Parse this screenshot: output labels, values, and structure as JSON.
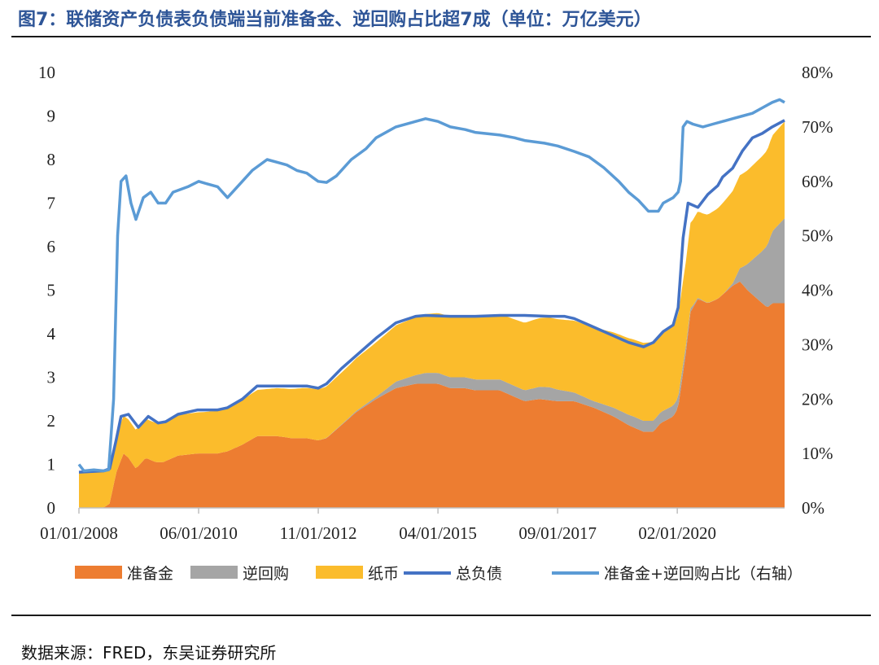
{
  "title": "图7：联储资产负债表负债端当前准备金、逆回购占比超7成（单位：万亿美元）",
  "source": "数据来源：FRED，东吴证券研究所",
  "chart_data": {
    "type": "area",
    "x_tick_labels": [
      "01/01/2008",
      "06/01/2010",
      "11/01/2012",
      "04/01/2015",
      "09/01/2017",
      "02/01/2020"
    ],
    "x_tick_positions": [
      2008.0,
      2010.417,
      2012.833,
      2015.25,
      2017.667,
      2020.083
    ],
    "x_range": [
      2008.0,
      2022.25
    ],
    "ylim_left": [
      0,
      10
    ],
    "yticks_left": [
      "0",
      "1",
      "2",
      "3",
      "4",
      "5",
      "6",
      "7",
      "8",
      "9",
      "10"
    ],
    "ylim_right": [
      0,
      80
    ],
    "yticks_right": [
      "0%",
      "10%",
      "20%",
      "30%",
      "40%",
      "50%",
      "60%",
      "70%",
      "80%"
    ],
    "legend_position": "bottom",
    "series": [
      {
        "name": "准备金",
        "kind": "stacked-area",
        "axis": "left",
        "color": "#ed7d31",
        "points": [
          [
            2008.0,
            0.01
          ],
          [
            2008.5,
            0.01
          ],
          [
            2008.62,
            0.1
          ],
          [
            2008.75,
            0.8
          ],
          [
            2008.9,
            1.25
          ],
          [
            2009.0,
            1.15
          ],
          [
            2009.15,
            0.9
          ],
          [
            2009.35,
            1.15
          ],
          [
            2009.55,
            1.05
          ],
          [
            2009.7,
            1.05
          ],
          [
            2010.0,
            1.2
          ],
          [
            2010.4,
            1.25
          ],
          [
            2010.8,
            1.25
          ],
          [
            2011.0,
            1.3
          ],
          [
            2011.3,
            1.45
          ],
          [
            2011.6,
            1.65
          ],
          [
            2012.0,
            1.65
          ],
          [
            2012.3,
            1.6
          ],
          [
            2012.6,
            1.6
          ],
          [
            2012.83,
            1.55
          ],
          [
            2013.0,
            1.6
          ],
          [
            2013.3,
            1.9
          ],
          [
            2013.6,
            2.2
          ],
          [
            2014.0,
            2.5
          ],
          [
            2014.4,
            2.75
          ],
          [
            2014.8,
            2.85
          ],
          [
            2015.0,
            2.85
          ],
          [
            2015.25,
            2.85
          ],
          [
            2015.5,
            2.75
          ],
          [
            2015.8,
            2.75
          ],
          [
            2016.0,
            2.7
          ],
          [
            2016.5,
            2.7
          ],
          [
            2016.8,
            2.55
          ],
          [
            2017.0,
            2.45
          ],
          [
            2017.3,
            2.5
          ],
          [
            2017.667,
            2.45
          ],
          [
            2018.0,
            2.45
          ],
          [
            2018.4,
            2.3
          ],
          [
            2018.8,
            2.1
          ],
          [
            2019.1,
            1.9
          ],
          [
            2019.4,
            1.75
          ],
          [
            2019.6,
            1.75
          ],
          [
            2019.75,
            1.95
          ],
          [
            2020.0,
            2.1
          ],
          [
            2020.1,
            2.3
          ],
          [
            2020.25,
            3.5
          ],
          [
            2020.35,
            4.5
          ],
          [
            2020.5,
            4.8
          ],
          [
            2020.7,
            4.7
          ],
          [
            2020.9,
            4.8
          ],
          [
            2021.0,
            4.9
          ],
          [
            2021.2,
            5.1
          ],
          [
            2021.35,
            5.2
          ],
          [
            2021.5,
            5.0
          ],
          [
            2021.7,
            4.8
          ],
          [
            2021.9,
            4.6
          ],
          [
            2022.0,
            4.7
          ],
          [
            2022.25,
            4.7
          ]
        ]
      },
      {
        "name": "逆回购",
        "kind": "stacked-area",
        "axis": "left",
        "color": "#a5a5a5",
        "points": [
          [
            2008.0,
            0.0
          ],
          [
            2012.8,
            0.0
          ],
          [
            2013.5,
            0.02
          ],
          [
            2014.0,
            0.05
          ],
          [
            2014.4,
            0.15
          ],
          [
            2014.8,
            0.2
          ],
          [
            2015.0,
            0.25
          ],
          [
            2015.5,
            0.25
          ],
          [
            2016.0,
            0.25
          ],
          [
            2016.5,
            0.25
          ],
          [
            2017.0,
            0.25
          ],
          [
            2017.5,
            0.3
          ],
          [
            2018.0,
            0.2
          ],
          [
            2018.4,
            0.15
          ],
          [
            2018.8,
            0.2
          ],
          [
            2019.2,
            0.25
          ],
          [
            2019.6,
            0.25
          ],
          [
            2020.0,
            0.25
          ],
          [
            2020.2,
            0.2
          ],
          [
            2020.4,
            0.05
          ],
          [
            2020.6,
            0.01
          ],
          [
            2021.0,
            0.0
          ],
          [
            2021.2,
            0.05
          ],
          [
            2021.4,
            0.4
          ],
          [
            2021.6,
            0.8
          ],
          [
            2021.8,
            1.2
          ],
          [
            2022.0,
            1.65
          ],
          [
            2022.25,
            1.95
          ]
        ]
      },
      {
        "name": "纸币",
        "kind": "stacked-area",
        "axis": "left",
        "color": "#fbbc2c",
        "points": [
          [
            2008.0,
            0.8
          ],
          [
            2008.5,
            0.82
          ],
          [
            2008.75,
            0.85
          ],
          [
            2009.0,
            0.88
          ],
          [
            2009.5,
            0.9
          ],
          [
            2010.0,
            0.93
          ],
          [
            2010.5,
            0.95
          ],
          [
            2011.0,
            1.0
          ],
          [
            2011.5,
            1.05
          ],
          [
            2012.0,
            1.1
          ],
          [
            2012.5,
            1.15
          ],
          [
            2013.0,
            1.18
          ],
          [
            2013.5,
            1.2
          ],
          [
            2014.0,
            1.25
          ],
          [
            2014.5,
            1.3
          ],
          [
            2015.0,
            1.35
          ],
          [
            2015.5,
            1.4
          ],
          [
            2016.0,
            1.45
          ],
          [
            2016.5,
            1.5
          ],
          [
            2017.0,
            1.55
          ],
          [
            2017.5,
            1.6
          ],
          [
            2018.0,
            1.65
          ],
          [
            2018.5,
            1.7
          ],
          [
            2019.0,
            1.75
          ],
          [
            2019.5,
            1.8
          ],
          [
            2020.0,
            1.85
          ],
          [
            2020.3,
            1.95
          ],
          [
            2020.6,
            2.0
          ],
          [
            2021.0,
            2.1
          ],
          [
            2021.5,
            2.15
          ],
          [
            2022.0,
            2.2
          ],
          [
            2022.25,
            2.22
          ]
        ]
      },
      {
        "name": "总负债",
        "kind": "line",
        "axis": "left",
        "color": "#4472c4",
        "points": [
          [
            2008.0,
            0.82
          ],
          [
            2008.5,
            0.85
          ],
          [
            2008.62,
            0.9
          ],
          [
            2008.75,
            1.55
          ],
          [
            2008.85,
            2.1
          ],
          [
            2009.0,
            2.15
          ],
          [
            2009.2,
            1.85
          ],
          [
            2009.4,
            2.1
          ],
          [
            2009.6,
            1.95
          ],
          [
            2009.75,
            1.98
          ],
          [
            2010.0,
            2.15
          ],
          [
            2010.4,
            2.25
          ],
          [
            2010.8,
            2.25
          ],
          [
            2011.0,
            2.3
          ],
          [
            2011.3,
            2.5
          ],
          [
            2011.6,
            2.8
          ],
          [
            2012.0,
            2.8
          ],
          [
            2012.3,
            2.8
          ],
          [
            2012.6,
            2.8
          ],
          [
            2012.83,
            2.75
          ],
          [
            2013.0,
            2.85
          ],
          [
            2013.3,
            3.2
          ],
          [
            2013.6,
            3.5
          ],
          [
            2014.0,
            3.9
          ],
          [
            2014.4,
            4.25
          ],
          [
            2014.8,
            4.4
          ],
          [
            2015.0,
            4.42
          ],
          [
            2015.5,
            4.4
          ],
          [
            2016.0,
            4.4
          ],
          [
            2016.5,
            4.42
          ],
          [
            2017.0,
            4.42
          ],
          [
            2017.5,
            4.4
          ],
          [
            2017.8,
            4.4
          ],
          [
            2018.0,
            4.35
          ],
          [
            2018.4,
            4.15
          ],
          [
            2018.8,
            3.95
          ],
          [
            2019.1,
            3.8
          ],
          [
            2019.4,
            3.7
          ],
          [
            2019.6,
            3.8
          ],
          [
            2019.8,
            4.05
          ],
          [
            2020.0,
            4.2
          ],
          [
            2020.1,
            4.6
          ],
          [
            2020.2,
            6.2
          ],
          [
            2020.3,
            7.0
          ],
          [
            2020.5,
            6.9
          ],
          [
            2020.7,
            7.2
          ],
          [
            2020.9,
            7.4
          ],
          [
            2021.0,
            7.6
          ],
          [
            2021.2,
            7.8
          ],
          [
            2021.4,
            8.2
          ],
          [
            2021.6,
            8.5
          ],
          [
            2021.8,
            8.6
          ],
          [
            2022.0,
            8.75
          ],
          [
            2022.25,
            8.9
          ]
        ]
      },
      {
        "name": "准备金+逆回购占比（右轴）",
        "kind": "line",
        "axis": "right",
        "color": "#5b9bd5",
        "points": [
          [
            2008.0,
            8.0
          ],
          [
            2008.1,
            6.8
          ],
          [
            2008.3,
            7.0
          ],
          [
            2008.5,
            6.8
          ],
          [
            2008.6,
            7.0
          ],
          [
            2008.7,
            20.0
          ],
          [
            2008.78,
            50.0
          ],
          [
            2008.85,
            60.0
          ],
          [
            2008.95,
            61.0
          ],
          [
            2009.05,
            56.0
          ],
          [
            2009.15,
            53.0
          ],
          [
            2009.3,
            57.0
          ],
          [
            2009.45,
            58.0
          ],
          [
            2009.6,
            56.0
          ],
          [
            2009.75,
            56.0
          ],
          [
            2009.9,
            58.0
          ],
          [
            2010.2,
            59.0
          ],
          [
            2010.417,
            60.0
          ],
          [
            2010.6,
            59.5
          ],
          [
            2010.8,
            59.0
          ],
          [
            2011.0,
            57.0
          ],
          [
            2011.2,
            59.0
          ],
          [
            2011.5,
            62.0
          ],
          [
            2011.8,
            64.0
          ],
          [
            2012.0,
            63.5
          ],
          [
            2012.2,
            63.0
          ],
          [
            2012.4,
            62.0
          ],
          [
            2012.6,
            61.5
          ],
          [
            2012.83,
            60.0
          ],
          [
            2013.0,
            59.8
          ],
          [
            2013.2,
            61.0
          ],
          [
            2013.5,
            64.0
          ],
          [
            2013.8,
            66.0
          ],
          [
            2014.0,
            68.0
          ],
          [
            2014.4,
            70.0
          ],
          [
            2014.8,
            71.0
          ],
          [
            2015.0,
            71.5
          ],
          [
            2015.25,
            71.0
          ],
          [
            2015.5,
            70.0
          ],
          [
            2015.8,
            69.5
          ],
          [
            2016.0,
            69.0
          ],
          [
            2016.5,
            68.5
          ],
          [
            2016.8,
            68.0
          ],
          [
            2017.0,
            67.5
          ],
          [
            2017.4,
            67.0
          ],
          [
            2017.667,
            66.5
          ],
          [
            2018.0,
            65.5
          ],
          [
            2018.3,
            64.5
          ],
          [
            2018.6,
            62.5
          ],
          [
            2018.9,
            60.0
          ],
          [
            2019.1,
            58.0
          ],
          [
            2019.3,
            56.5
          ],
          [
            2019.5,
            54.5
          ],
          [
            2019.7,
            54.5
          ],
          [
            2019.8,
            56.0
          ],
          [
            2020.0,
            57.0
          ],
          [
            2020.1,
            58.0
          ],
          [
            2020.15,
            60.0
          ],
          [
            2020.2,
            70.0
          ],
          [
            2020.28,
            71.0
          ],
          [
            2020.4,
            70.5
          ],
          [
            2020.6,
            70.0
          ],
          [
            2020.8,
            70.5
          ],
          [
            2021.0,
            71.0
          ],
          [
            2021.2,
            71.5
          ],
          [
            2021.4,
            72.0
          ],
          [
            2021.6,
            72.5
          ],
          [
            2021.8,
            73.5
          ],
          [
            2022.0,
            74.5
          ],
          [
            2022.15,
            75.0
          ],
          [
            2022.25,
            74.5
          ]
        ]
      }
    ]
  }
}
